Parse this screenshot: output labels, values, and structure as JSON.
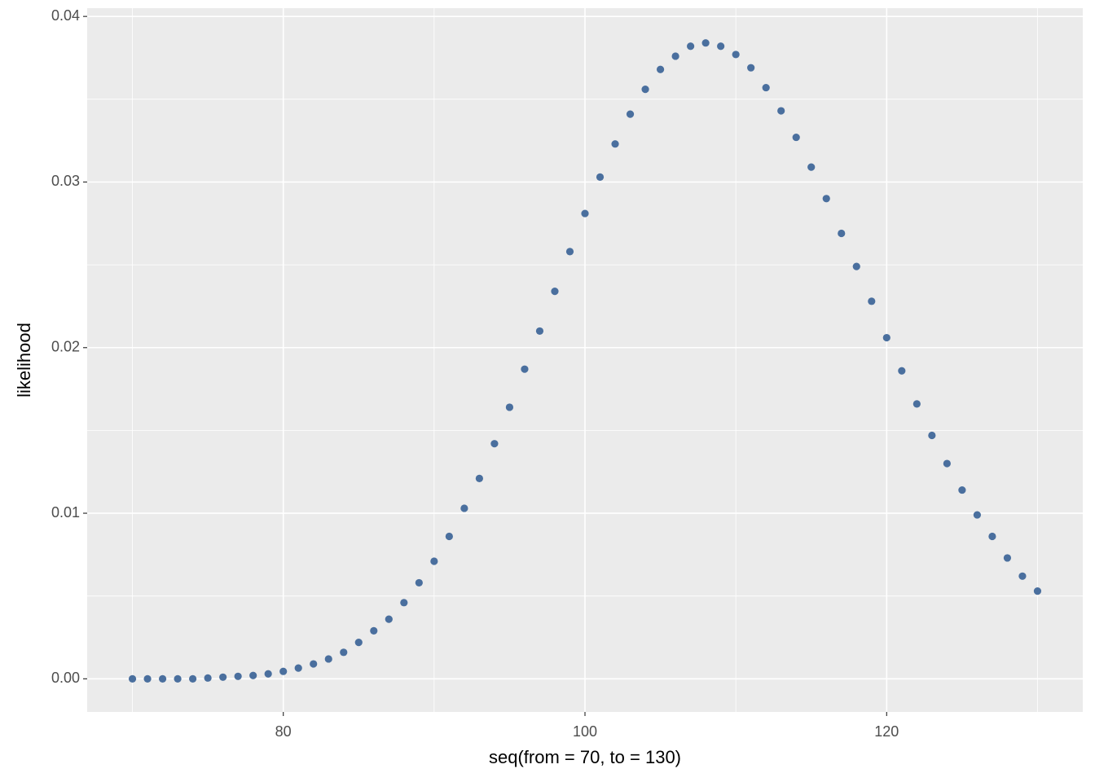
{
  "chart_data": {
    "type": "scatter",
    "x_label": "seq(from = 70, to = 130)",
    "y_label": "likelihood",
    "color": "#4a6f9e",
    "grid": true,
    "x": [
      70,
      71,
      72,
      73,
      74,
      75,
      76,
      77,
      78,
      79,
      80,
      81,
      82,
      83,
      84,
      85,
      86,
      87,
      88,
      89,
      90,
      91,
      92,
      93,
      94,
      95,
      96,
      97,
      98,
      99,
      100,
      101,
      102,
      103,
      104,
      105,
      106,
      107,
      108,
      109,
      110,
      111,
      112,
      113,
      114,
      115,
      116,
      117,
      118,
      119,
      120,
      121,
      122,
      123,
      124,
      125,
      126,
      127,
      128,
      129,
      130
    ],
    "values": [
      0,
      0,
      0,
      0,
      0,
      5e-05,
      0.0001,
      0.00015,
      0.0002,
      0.0003,
      0.00045,
      0.00065,
      0.0009,
      0.0012,
      0.0016,
      0.0022,
      0.0029,
      0.0036,
      0.0046,
      0.0058,
      0.0071,
      0.0086,
      0.0103,
      0.0121,
      0.0142,
      0.0164,
      0.0187,
      0.021,
      0.0234,
      0.0258,
      0.0281,
      0.0303,
      0.0323,
      0.0341,
      0.0356,
      0.0368,
      0.0376,
      0.0382,
      0.0384,
      0.0382,
      0.0377,
      0.0369,
      0.0357,
      0.0343,
      0.0327,
      0.0309,
      0.029,
      0.0269,
      0.0249,
      0.0228,
      0.0206,
      0.0186,
      0.0166,
      0.0147,
      0.013,
      0.0114,
      0.0099,
      0.0086,
      0.0073,
      0.0062,
      0.0053
    ],
    "xlim": [
      67,
      133
    ],
    "ylim": [
      -0.002,
      0.0405
    ],
    "xticks": [
      80,
      100,
      120
    ],
    "yticks": [
      {
        "value": 0,
        "label": "0.00"
      },
      0.01,
      0.02,
      0.03,
      0.04
    ],
    "x_minor_ticks": [
      70,
      90,
      110,
      130
    ],
    "y_minor_ticks": [
      0.005,
      0.015,
      0.025,
      0.035
    ]
  }
}
